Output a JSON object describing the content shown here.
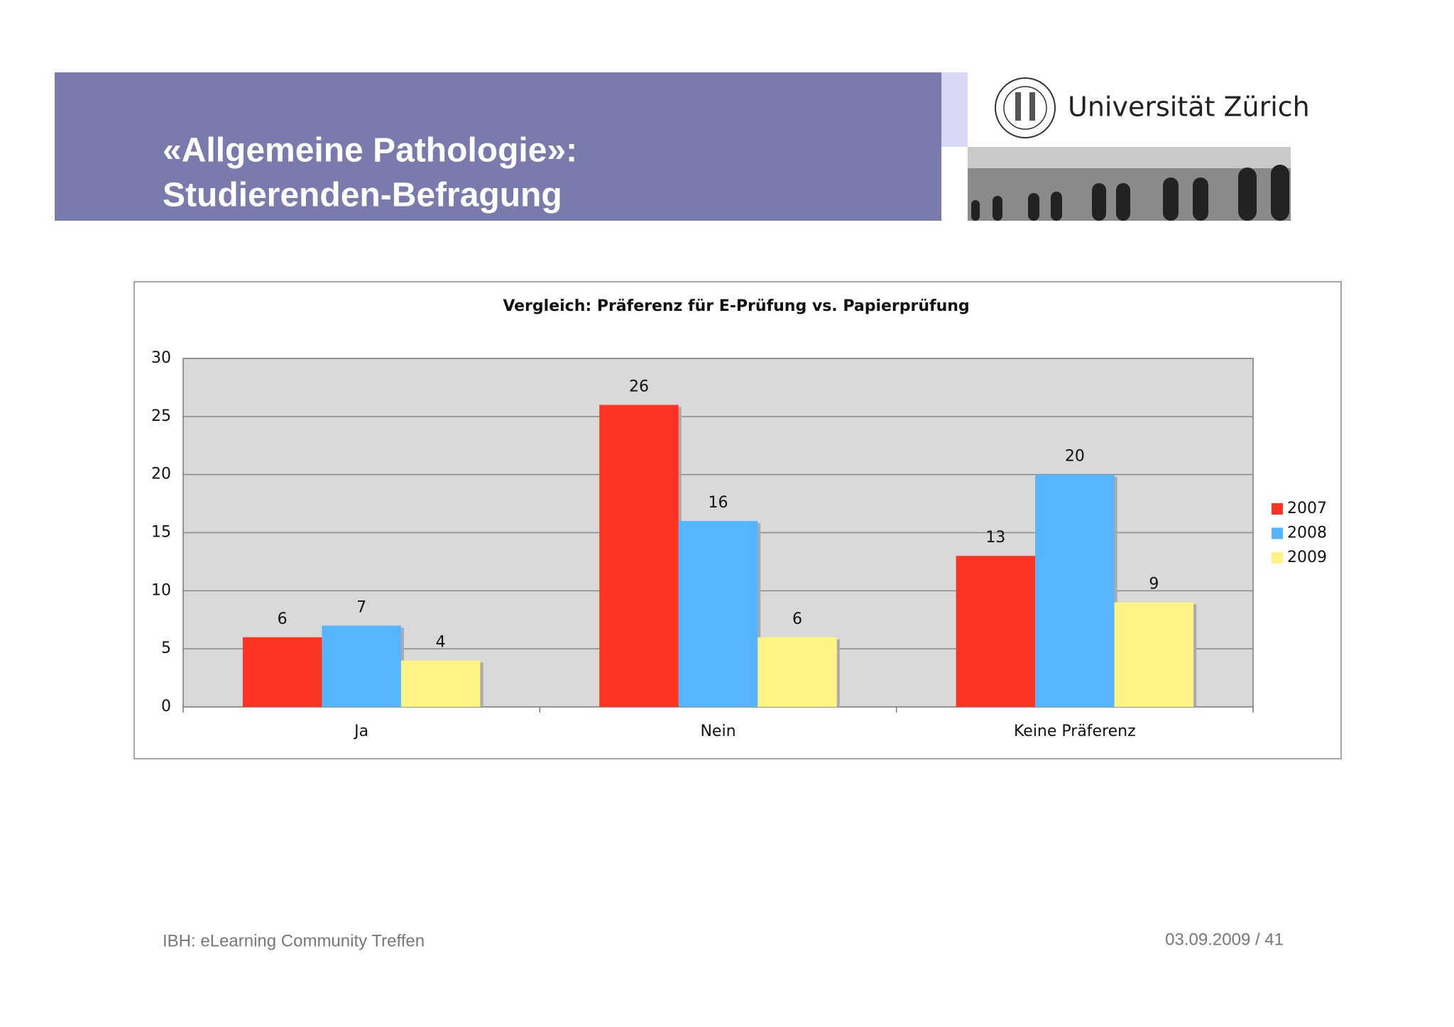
{
  "header": {
    "title_lines": [
      "«Allgemeine Pathologie»:",
      "Studierenden-Befragung"
    ],
    "logo_text": "Universität Zürich"
  },
  "chart_data": {
    "type": "bar",
    "title": "Vergleich: Präferenz für E-Prüfung vs. Papierprüfung",
    "categories": [
      "Ja",
      "Nein",
      "Keine Präferenz"
    ],
    "series": [
      {
        "name": "2007",
        "color": "#ff3322",
        "values": [
          6,
          26,
          13
        ]
      },
      {
        "name": "2008",
        "color": "#55b5ff",
        "values": [
          7,
          16,
          20
        ]
      },
      {
        "name": "2009",
        "color": "#fff385",
        "values": [
          4,
          6,
          9
        ]
      }
    ],
    "ylim": [
      0,
      30
    ],
    "yticks": [
      0,
      5,
      10,
      15,
      20,
      25,
      30
    ],
    "grid": true,
    "legend": "right"
  },
  "footer": {
    "left": "IBH: eLearning  Community   Treffen",
    "right": "03.09.2009  /  41"
  }
}
